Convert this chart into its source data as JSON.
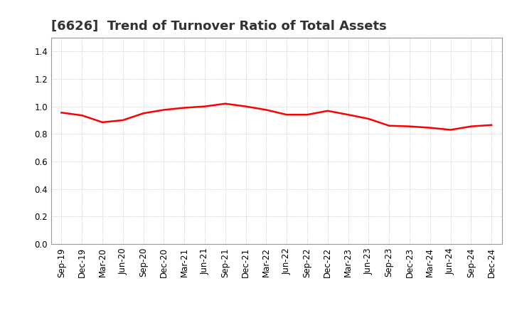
{
  "title": "[6626]  Trend of Turnover Ratio of Total Assets",
  "x_labels": [
    "Sep-19",
    "Dec-19",
    "Mar-20",
    "Jun-20",
    "Sep-20",
    "Dec-20",
    "Mar-21",
    "Jun-21",
    "Sep-21",
    "Dec-21",
    "Mar-22",
    "Jun-22",
    "Sep-22",
    "Dec-22",
    "Mar-23",
    "Jun-23",
    "Sep-23",
    "Dec-23",
    "Mar-24",
    "Jun-24",
    "Sep-24",
    "Dec-24"
  ],
  "y_values": [
    0.955,
    0.935,
    0.885,
    0.9,
    0.95,
    0.975,
    0.99,
    1.0,
    1.02,
    1.0,
    0.975,
    0.94,
    0.94,
    0.968,
    0.94,
    0.91,
    0.86,
    0.855,
    0.845,
    0.83,
    0.855,
    0.865
  ],
  "line_color": "#ff0000",
  "line_width": 1.8,
  "ylim": [
    0.0,
    1.5
  ],
  "yticks": [
    0.0,
    0.2,
    0.4,
    0.6,
    0.8,
    1.0,
    1.2,
    1.4
  ],
  "background_color": "#ffffff",
  "grid_color": "#bbbbbb",
  "title_fontsize": 13,
  "tick_fontsize": 8.5
}
